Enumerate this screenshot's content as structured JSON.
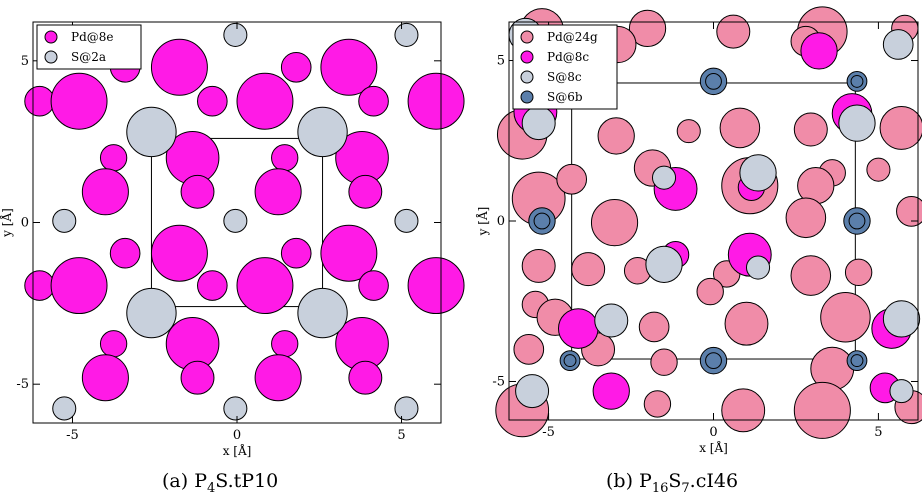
{
  "captions": [
    {
      "pre": "(a) P",
      "sub1": "4",
      "mid": "S.tP10",
      "sub2": "",
      "post": ""
    },
    {
      "pre": "(b) P",
      "sub1": "16",
      "mid": "S",
      "sub2": "7",
      "post": ".cI46"
    }
  ],
  "chart_data": [
    {
      "type": "scatter",
      "xlabel": "x [Å]",
      "ylabel": "y [Å]",
      "xlim": [
        -6.2,
        6.2
      ],
      "ylim": [
        -6.2,
        6.2
      ],
      "xticks": [
        -5,
        0,
        5
      ],
      "yticks": [
        -5,
        0,
        5
      ],
      "xtick_labels": [
        "-5",
        "0",
        "5"
      ],
      "ytick_labels": [
        "-5",
        "0",
        "5"
      ],
      "grid": false,
      "legend_position": "top-left",
      "unit_cell": [
        -2.6,
        -2.6,
        2.6,
        2.6
      ],
      "series": [
        {
          "name": "Pd@8e",
          "color": "#ff1ae6",
          "points": [
            [
              -6,
              3.75,
              0.45
            ],
            [
              -4.8,
              3.75,
              0.85
            ],
            [
              -3.4,
              4.8,
              0.45
            ],
            [
              -1.75,
              4.8,
              0.85
            ],
            [
              -0.75,
              3.75,
              0.45
            ],
            [
              0.85,
              3.75,
              0.85
            ],
            [
              1.8,
              4.8,
              0.45
            ],
            [
              3.4,
              4.8,
              0.85
            ],
            [
              4.15,
              3.75,
              0.45
            ],
            [
              6.05,
              3.75,
              0.85
            ],
            [
              -3.75,
              2.0,
              0.4
            ],
            [
              -1.35,
              2.0,
              0.8
            ],
            [
              1.45,
              2.0,
              0.4
            ],
            [
              3.8,
              2.0,
              0.8
            ],
            [
              -4.0,
              0.95,
              0.7
            ],
            [
              -1.2,
              0.95,
              0.5
            ],
            [
              1.25,
              0.95,
              0.7
            ],
            [
              3.9,
              0.95,
              0.5
            ],
            [
              -3.4,
              -0.95,
              0.45
            ],
            [
              -1.75,
              -0.95,
              0.85
            ],
            [
              1.8,
              -0.95,
              0.45
            ],
            [
              3.4,
              -0.95,
              0.85
            ],
            [
              -6,
              -1.95,
              0.45
            ],
            [
              -4.8,
              -1.95,
              0.85
            ],
            [
              -0.75,
              -1.95,
              0.45
            ],
            [
              0.85,
              -1.95,
              0.85
            ],
            [
              4.15,
              -1.95,
              0.45
            ],
            [
              6.05,
              -1.95,
              0.85
            ],
            [
              -3.75,
              -3.75,
              0.4
            ],
            [
              -1.35,
              -3.75,
              0.8
            ],
            [
              1.45,
              -3.75,
              0.4
            ],
            [
              3.8,
              -3.75,
              0.8
            ],
            [
              -4.0,
              -4.8,
              0.7
            ],
            [
              -1.2,
              -4.8,
              0.5
            ],
            [
              1.25,
              -4.8,
              0.7
            ],
            [
              3.9,
              -4.8,
              0.5
            ]
          ]
        },
        {
          "name": "S@2a",
          "color": "#c8d0dc",
          "points": [
            [
              -0.05,
              5.8,
              0.35
            ],
            [
              5.15,
              5.8,
              0.35
            ],
            [
              -5.25,
              0.05,
              0.35
            ],
            [
              -0.05,
              0.05,
              0.35
            ],
            [
              5.15,
              0.05,
              0.35
            ],
            [
              -5.25,
              -5.75,
              0.35
            ],
            [
              -0.05,
              -5.75,
              0.35
            ],
            [
              5.15,
              -5.75,
              0.35
            ],
            [
              -2.6,
              2.8,
              0.75
            ],
            [
              2.6,
              2.8,
              0.75
            ],
            [
              -2.6,
              -2.8,
              0.75
            ],
            [
              2.6,
              -2.8,
              0.75
            ]
          ]
        }
      ]
    },
    {
      "type": "scatter",
      "xlabel": "x [Å]",
      "ylabel": "y [Å]",
      "xlim": [
        -6.2,
        6.2
      ],
      "ylim": [
        -6.2,
        6.2
      ],
      "xticks": [
        -5,
        0,
        5
      ],
      "yticks": [
        -5,
        0,
        5
      ],
      "xtick_labels": [
        "-5",
        "0",
        "5"
      ],
      "ytick_labels": [
        "-5",
        "0",
        "5"
      ],
      "grid": false,
      "legend_position": "top-left",
      "unit_cell": [
        -4.3,
        -4.3,
        4.3,
        4.3
      ],
      "series": [
        {
          "name": "Pd@24g",
          "color": "#f08ca8",
          "points": [
            [
              -5.2,
              5.95,
              0.65
            ],
            [
              -2.0,
              6.0,
              0.55
            ],
            [
              0.6,
              5.9,
              0.5
            ],
            [
              3.3,
              5.9,
              0.75
            ],
            [
              5.8,
              6.0,
              0.4
            ],
            [
              -2.9,
              5.5,
              0.55
            ],
            [
              2.8,
              5.6,
              0.45
            ],
            [
              -5.8,
              2.7,
              0.75
            ],
            [
              -2.95,
              2.65,
              0.55
            ],
            [
              -0.75,
              2.8,
              0.35
            ],
            [
              0.8,
              2.9,
              0.6
            ],
            [
              2.95,
              2.85,
              0.5
            ],
            [
              5.7,
              2.9,
              0.65
            ],
            [
              -5.3,
              0.7,
              0.8
            ],
            [
              -4.3,
              1.3,
              0.45
            ],
            [
              -1.35,
              1.15,
              0.4
            ],
            [
              1.1,
              1.1,
              0.85
            ],
            [
              3.6,
              1.5,
              0.4
            ],
            [
              5.0,
              1.6,
              0.35
            ],
            [
              6.0,
              0.3,
              0.45
            ],
            [
              -1.85,
              1.65,
              0.55
            ],
            [
              3.1,
              1.1,
              0.55
            ],
            [
              -3.0,
              -0.05,
              0.7
            ],
            [
              2.8,
              0.1,
              0.6
            ],
            [
              -3.8,
              -1.5,
              0.5
            ],
            [
              -2.3,
              -1.55,
              0.4
            ],
            [
              0.4,
              -1.65,
              0.4
            ],
            [
              2.95,
              -1.7,
              0.6
            ],
            [
              -5.3,
              -1.4,
              0.5
            ],
            [
              4.4,
              -1.6,
              0.4
            ],
            [
              -0.1,
              -2.2,
              0.4
            ],
            [
              -5.4,
              -2.6,
              0.4
            ],
            [
              -4.8,
              -3.0,
              0.55
            ],
            [
              -1.8,
              -3.3,
              0.45
            ],
            [
              1.0,
              -3.2,
              0.65
            ],
            [
              4.0,
              -3.0,
              0.75
            ],
            [
              -5.6,
              -4.0,
              0.45
            ],
            [
              -3.5,
              -4.0,
              0.5
            ],
            [
              -1.5,
              -4.4,
              0.4
            ],
            [
              3.6,
              -4.6,
              0.65
            ],
            [
              -5.8,
              -5.9,
              0.8
            ],
            [
              -1.7,
              -5.7,
              0.4
            ],
            [
              0.9,
              -5.9,
              0.65
            ],
            [
              3.3,
              -5.9,
              0.85
            ],
            [
              6.0,
              -5.8,
              0.5
            ]
          ]
        },
        {
          "name": "Pd@8c",
          "color": "#ff1ae6",
          "points": [
            [
              -5.4,
              3.4,
              0.65
            ],
            [
              4.2,
              3.35,
              0.6
            ],
            [
              -1.15,
              1.0,
              0.65
            ],
            [
              1.15,
              1.05,
              0.4
            ],
            [
              -1.15,
              -1.05,
              0.4
            ],
            [
              1.1,
              -1.05,
              0.65
            ],
            [
              -4.1,
              -3.35,
              0.6
            ],
            [
              5.4,
              -3.35,
              0.6
            ],
            [
              -5.2,
              5.1,
              0.45
            ],
            [
              5.2,
              -5.2,
              0.45
            ],
            [
              -3.1,
              -5.3,
              0.55
            ],
            [
              3.2,
              5.3,
              0.55
            ]
          ]
        },
        {
          "name": "S@8c",
          "color": "#c8d0dc",
          "points": [
            [
              -5.3,
              3.05,
              0.5
            ],
            [
              4.35,
              3.05,
              0.55
            ],
            [
              -1.5,
              1.35,
              0.35
            ],
            [
              1.35,
              1.5,
              0.55
            ],
            [
              -1.5,
              -1.35,
              0.55
            ],
            [
              1.35,
              -1.45,
              0.35
            ],
            [
              -3.1,
              -3.1,
              0.5
            ],
            [
              5.7,
              -3.05,
              0.55
            ],
            [
              -5.5,
              -5.3,
              0.5
            ],
            [
              5.7,
              -5.3,
              0.35
            ],
            [
              -5.7,
              5.8,
              0.5
            ],
            [
              5.6,
              5.5,
              0.45
            ]
          ]
        },
        {
          "name": "S@6b",
          "color": "#5b7fab",
          "points": [
            [
              0.0,
              4.35,
              0.4
            ],
            [
              0.0,
              -4.35,
              0.4
            ],
            [
              -5.2,
              0.0,
              0.4
            ],
            [
              4.35,
              0.0,
              0.4
            ],
            [
              4.35,
              4.35,
              0.3
            ],
            [
              -4.35,
              -4.35,
              0.3
            ],
            [
              4.35,
              -4.35,
              0.3
            ]
          ]
        }
      ]
    }
  ]
}
